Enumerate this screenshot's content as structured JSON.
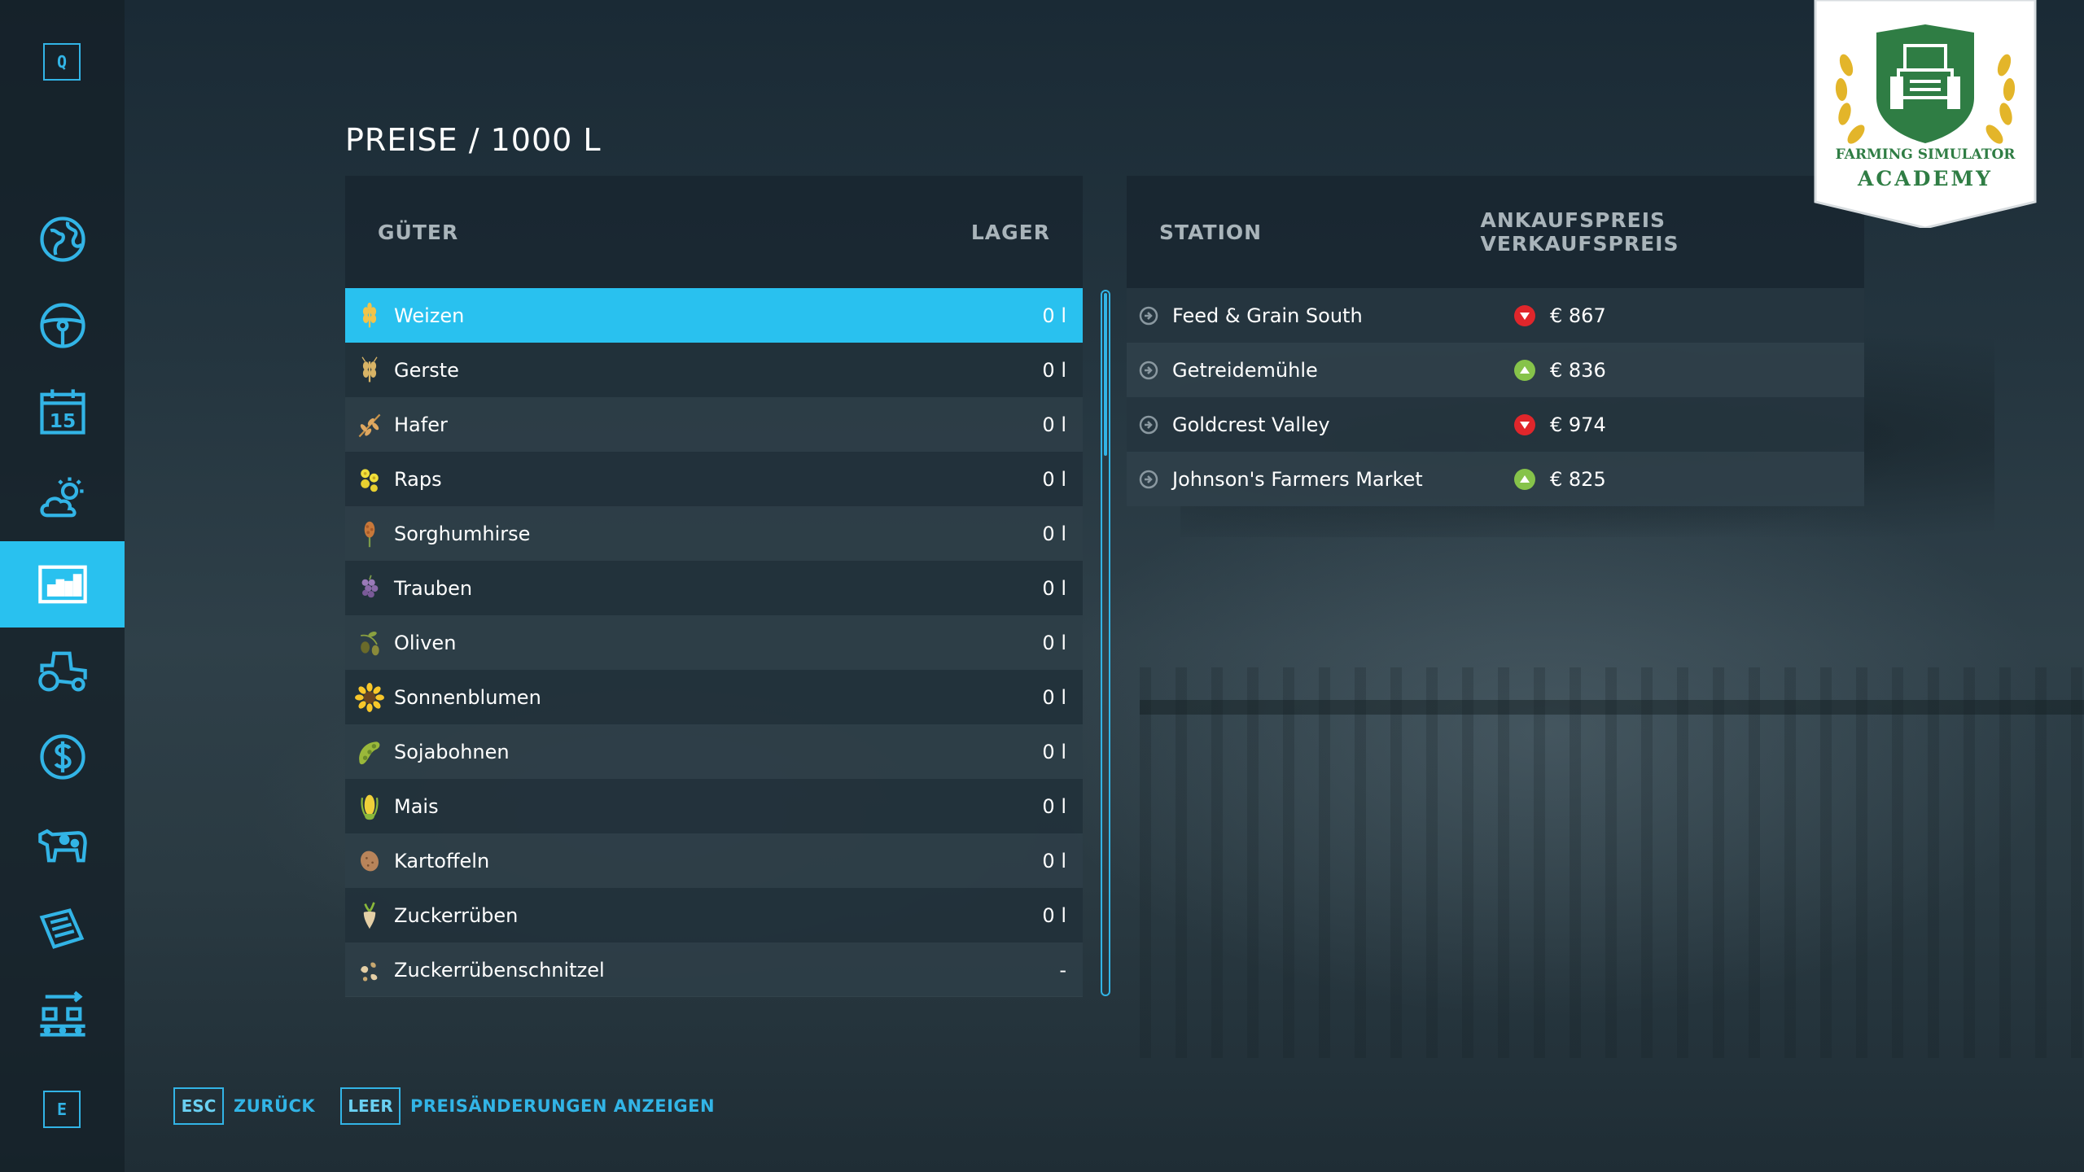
{
  "sidebar": {
    "prev_key": "Q",
    "next_key": "E",
    "items": [
      {
        "icon": "globe-map-icon",
        "active": false
      },
      {
        "icon": "steering-wheel-icon",
        "active": false
      },
      {
        "icon": "calendar-icon",
        "calendar_day": "15",
        "active": false
      },
      {
        "icon": "weather-icon",
        "active": false
      },
      {
        "icon": "prices-chart-icon",
        "active": true
      },
      {
        "icon": "tractor-icon",
        "active": false
      },
      {
        "icon": "dollar-icon",
        "active": false
      },
      {
        "icon": "cow-icon",
        "active": false
      },
      {
        "icon": "contracts-icon",
        "active": false
      },
      {
        "icon": "production-icon",
        "active": false
      }
    ]
  },
  "title": "PREISE / 1000 L",
  "goods": {
    "header_name": "GÜTER",
    "header_stock": "LAGER",
    "items": [
      {
        "name": "Weizen",
        "stock": "0 l",
        "icon": "wheat-icon",
        "selected": true
      },
      {
        "name": "Gerste",
        "stock": "0 l",
        "icon": "barley-icon"
      },
      {
        "name": "Hafer",
        "stock": "0 l",
        "icon": "oat-icon"
      },
      {
        "name": "Raps",
        "stock": "0 l",
        "icon": "canola-icon"
      },
      {
        "name": "Sorghumhirse",
        "stock": "0 l",
        "icon": "sorghum-icon"
      },
      {
        "name": "Trauben",
        "stock": "0 l",
        "icon": "grapes-icon"
      },
      {
        "name": "Oliven",
        "stock": "0 l",
        "icon": "olives-icon"
      },
      {
        "name": "Sonnenblumen",
        "stock": "0 l",
        "icon": "sunflower-icon"
      },
      {
        "name": "Sojabohnen",
        "stock": "0 l",
        "icon": "soybean-icon"
      },
      {
        "name": "Mais",
        "stock": "0 l",
        "icon": "corn-icon"
      },
      {
        "name": "Kartoffeln",
        "stock": "0 l",
        "icon": "potato-icon"
      },
      {
        "name": "Zuckerrüben",
        "stock": "0 l",
        "icon": "sugarbeet-icon"
      },
      {
        "name": "Zuckerrübenschnitzel",
        "stock": "-",
        "icon": "beet-pulp-icon"
      }
    ]
  },
  "stations": {
    "header_station": "STATION",
    "header_prices": "ANKAUFSPREIS VERKAUFSPREIS",
    "items": [
      {
        "name": "Feed & Grain South",
        "price": "€ 867",
        "trend": "down"
      },
      {
        "name": "Getreidemühle",
        "price": "€ 836",
        "trend": "up"
      },
      {
        "name": "Goldcrest Valley",
        "price": "€ 974",
        "trend": "down"
      },
      {
        "name": "Johnson's Farmers Market",
        "price": "€ 825",
        "trend": "up"
      }
    ]
  },
  "footer": {
    "back_key": "ESC",
    "back_label": "ZURÜCK",
    "toggle_key": "LEER",
    "toggle_label": "PREISÄNDERUNGEN ANZEIGEN"
  },
  "badge": {
    "line1": "FARMING SIMULATOR",
    "line2": "ACADEMY"
  },
  "colors": {
    "accent": "#29c1ef",
    "key_outline": "#32b4e6",
    "trend_down": "#e0262b",
    "trend_up": "#86c34a",
    "badge_green": "#2f7d44",
    "badge_gold": "#e3b52a"
  }
}
